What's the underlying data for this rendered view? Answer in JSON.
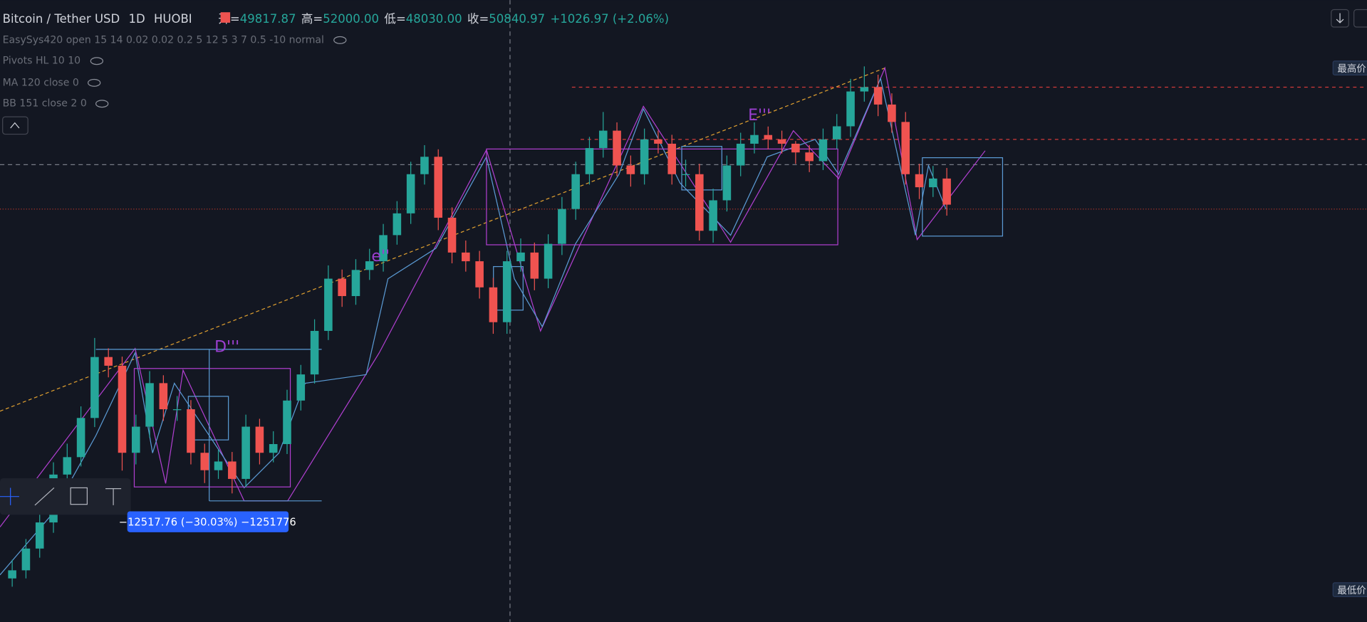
{
  "chart_data": {
    "type": "candlestick",
    "title": "Bitcoin / Tether USD",
    "interval": "1D",
    "exchange": "HUOBI",
    "legend": {
      "open_label": "开=",
      "open": "49817.87",
      "high_label": "高=",
      "high": "52000.00",
      "low_label": "低=",
      "low": "48030.00",
      "close_label": "收=",
      "close": "50840.97",
      "change": "+1026.97 (+2.06%)"
    },
    "indicators": [
      "EasySys420 open 15 14 0.02 0.02 0.2 5 12 5 3 7 0.5 -10 normal",
      "Pivots HL 10 10",
      "MA 120 close 0",
      "BB 151 close 2 0"
    ],
    "annotations": [
      "e''",
      "D'''",
      "E'''"
    ],
    "measure_label": "−12517.76 (−30.03%) −1251776",
    "price_labels": [
      "最高价",
      "最低价"
    ],
    "up_color": "#26a69a",
    "down_color": "#ef5350",
    "ylim": [
      26400,
      56400
    ],
    "open": [
      28500,
      28890,
      29940,
      31200,
      33510,
      34350,
      36240,
      39180,
      38760,
      34560,
      35820,
      37920,
      36660,
      36660,
      34560,
      33720,
      34140,
      33300,
      35820,
      34560,
      34980,
      37080,
      38340,
      40440,
      42960,
      42120,
      43380,
      43800,
      45060,
      46110,
      48000,
      48840,
      45900,
      44220,
      43800,
      42540,
      40860,
      43800,
      44220,
      42960,
      44640,
      46320,
      48000,
      49260,
      50100,
      48420,
      48000,
      49680,
      49470,
      48000,
      48000,
      45270,
      46740,
      48420,
      49470,
      49890,
      49680,
      49470,
      49050,
      48630,
      49680,
      50310,
      51990,
      52200,
      51360,
      50520,
      48000,
      47370,
      47790
    ],
    "high": [
      29400,
      30400,
      31700,
      34100,
      35000,
      36800,
      40100,
      39600,
      39200,
      36400,
      38500,
      38300,
      37300,
      37100,
      35000,
      34700,
      34600,
      36400,
      36200,
      35600,
      37600,
      38800,
      41000,
      43600,
      43400,
      43900,
      44400,
      45600,
      46700,
      48600,
      49400,
      49200,
      46400,
      44800,
      44300,
      43000,
      44300,
      44900,
      44700,
      45100,
      46900,
      48600,
      49800,
      51000,
      50500,
      48900,
      50200,
      50100,
      49900,
      48700,
      48500,
      47300,
      48900,
      50000,
      50500,
      50300,
      50100,
      49600,
      49400,
      50200,
      50900,
      52600,
      53200,
      52800,
      51900,
      51000,
      48500,
      48400,
      48300
    ],
    "low": [
      28100,
      28500,
      29500,
      30700,
      33000,
      33900,
      35800,
      38200,
      33700,
      34000,
      35300,
      36100,
      36100,
      34000,
      33100,
      33300,
      32600,
      32900,
      34000,
      34100,
      34500,
      36600,
      37900,
      40000,
      41600,
      41700,
      42900,
      43300,
      44600,
      45600,
      47500,
      45300,
      43700,
      43300,
      42000,
      40300,
      40300,
      43300,
      42400,
      42500,
      44100,
      45800,
      47500,
      48800,
      47900,
      47400,
      47500,
      49000,
      47500,
      47400,
      44800,
      44700,
      46200,
      47900,
      49000,
      49200,
      49000,
      48500,
      48100,
      48200,
      49200,
      49800,
      51500,
      50800,
      50000,
      47500,
      46800,
      46900,
      46000
    ],
    "close": [
      28890,
      29940,
      31200,
      33510,
      34350,
      36240,
      39180,
      38760,
      34560,
      35820,
      37920,
      36660,
      36660,
      34560,
      33720,
      34140,
      33300,
      35820,
      34560,
      34980,
      37080,
      38340,
      40440,
      42960,
      42120,
      43380,
      43800,
      45060,
      46110,
      48000,
      48840,
      45900,
      44220,
      43800,
      42540,
      40860,
      43800,
      44220,
      42960,
      44640,
      46320,
      48000,
      49260,
      50100,
      48420,
      48000,
      49680,
      49470,
      48000,
      48000,
      45270,
      46740,
      48420,
      49470,
      49890,
      49680,
      49470,
      49050,
      48630,
      49680,
      50310,
      51990,
      52200,
      51360,
      50520,
      48000,
      47370,
      47790,
      46530
    ]
  }
}
